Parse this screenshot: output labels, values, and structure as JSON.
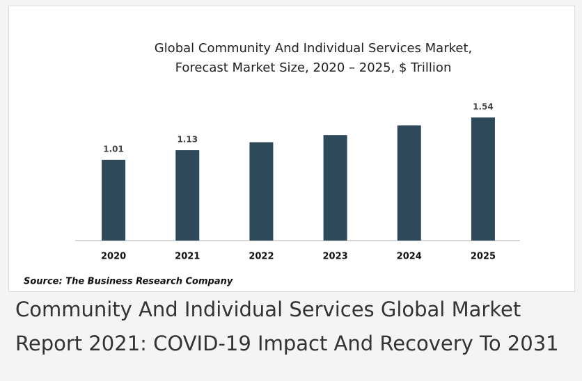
{
  "chart_data": {
    "type": "bar",
    "title": [
      "Global Community And Individual Services Market,",
      "Forecast Market Size, 2020 – 2025, $ Trillion"
    ],
    "categories": [
      "2020",
      "2021",
      "2022",
      "2023",
      "2024",
      "2025"
    ],
    "values": [
      1.01,
      1.13,
      1.23,
      1.32,
      1.44,
      1.54
    ],
    "value_labels": [
      1.01,
      1.13,
      null,
      null,
      null,
      1.54
    ],
    "color": "#2e4a5a",
    "ylim": [
      0,
      1.8
    ],
    "source": "Source: The Business Research Company"
  },
  "caption": [
    "Community And Individual Services Global Market",
    "Report 2021: COVID-19 Impact And Recovery To 2031"
  ]
}
